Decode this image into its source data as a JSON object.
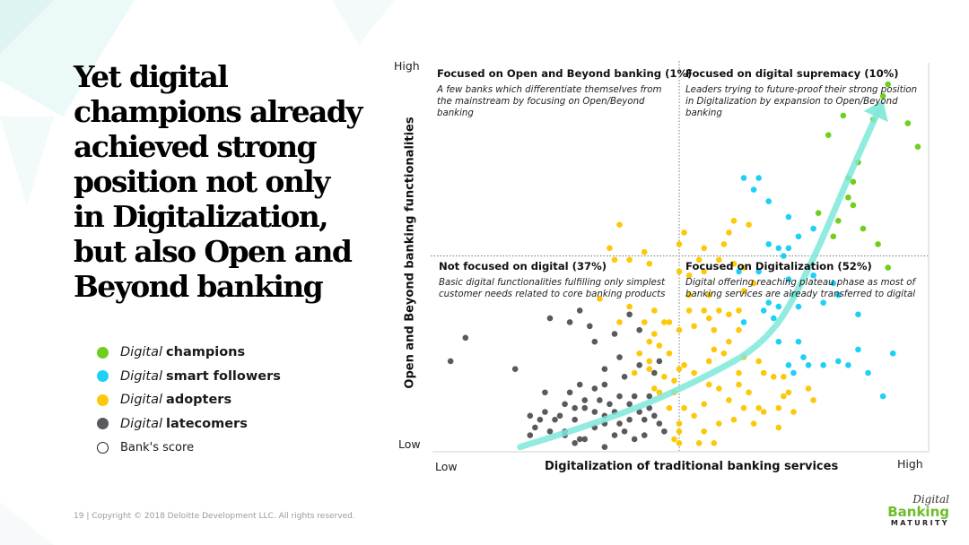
{
  "headline": [
    "Yet digital",
    "champions already",
    "achieved strong",
    "position not only",
    "in Digitalization,",
    "but also Open and",
    "Beyond banking"
  ],
  "legend": [
    {
      "prefix": "Digital",
      "name": "champions",
      "color": "#6fcf1c"
    },
    {
      "prefix": "Digital",
      "name": "smart followers",
      "color": "#1fd0f5"
    },
    {
      "prefix": "Digital",
      "name": "adopters",
      "color": "#fcc80a"
    },
    {
      "prefix": "Digital",
      "name": "latecomers",
      "color": "#5a5a5e"
    },
    {
      "prefix": "",
      "name": "Bank's score",
      "color": "#ffffff"
    }
  ],
  "axes": {
    "y_label": "Open and Beyond banking functionalities",
    "x_label": "Digitalization of traditional banking services",
    "y_high": "High",
    "y_low": "Low",
    "x_low": "Low",
    "x_high": "High"
  },
  "quadrants": {
    "top_left": {
      "title": "Focused on Open and Beyond banking (1%)",
      "desc": "A few banks which differentiate themselves from the mainstream by focusing on Open/Beyond banking"
    },
    "top_right": {
      "title": "Focused on digital supremacy (10%)",
      "desc": "Leaders trying to future-proof their strong position in Digitalization by expansion to Open/Beyond banking"
    },
    "bottom_left": {
      "title": "Not focused on digital (37%)",
      "desc": "Basic digital functionalities fulfilling only simplest customer needs related to core banking products"
    },
    "bottom_right": {
      "title": "Focused on Digitalization (52%)",
      "desc": "Digital offering reaching plateau phase as most of banking services are already transferred to digital"
    }
  },
  "chart_data": {
    "type": "scatter",
    "title": "",
    "xlabel": "Digitalization of traditional banking services",
    "ylabel": "Open and Beyond banking functionalities",
    "xlim": [
      0,
      100
    ],
    "ylim": [
      0,
      100
    ],
    "threshold": {
      "x": 50,
      "y": 50
    },
    "quadrant_shares": {
      "top_left": 1,
      "top_right": 10,
      "bottom_left": 37,
      "bottom_right": 52
    },
    "trend_arrow": [
      [
        18,
        1
      ],
      [
        36,
        8
      ],
      [
        54,
        18
      ],
      [
        68,
        28
      ],
      [
        76,
        46
      ],
      [
        84,
        70
      ],
      [
        90,
        87
      ]
    ],
    "series": [
      {
        "name": "Digital champions",
        "color": "#6fcf1c",
        "points": [
          [
            80,
            81
          ],
          [
            83,
            86
          ],
          [
            91,
            91
          ],
          [
            92,
            94
          ],
          [
            96,
            84
          ],
          [
            98,
            78
          ],
          [
            84,
            65
          ],
          [
            85,
            63
          ],
          [
            87,
            57
          ],
          [
            85,
            69
          ],
          [
            84,
            70
          ],
          [
            82,
            59
          ],
          [
            78,
            61
          ],
          [
            81,
            55
          ],
          [
            90,
            53
          ],
          [
            92,
            47
          ],
          [
            89,
            85
          ],
          [
            86,
            74
          ]
        ]
      },
      {
        "name": "Digital smart followers",
        "color": "#1fd0f5",
        "points": [
          [
            63,
            70
          ],
          [
            66,
            70
          ],
          [
            65,
            67
          ],
          [
            68,
            64
          ],
          [
            72,
            60
          ],
          [
            74,
            55
          ],
          [
            70,
            52
          ],
          [
            72,
            52
          ],
          [
            62,
            46
          ],
          [
            66,
            46
          ],
          [
            72,
            44
          ],
          [
            77,
            45
          ],
          [
            73,
            40
          ],
          [
            70,
            37
          ],
          [
            74,
            37
          ],
          [
            75,
            24
          ],
          [
            76,
            22
          ],
          [
            72,
            22
          ],
          [
            73,
            20
          ],
          [
            79,
            22
          ],
          [
            82,
            23
          ],
          [
            84,
            22
          ],
          [
            86,
            26
          ],
          [
            88,
            20
          ],
          [
            91,
            14
          ],
          [
            93,
            25
          ],
          [
            86,
            35
          ],
          [
            79,
            38
          ],
          [
            81,
            43
          ],
          [
            82,
            40
          ],
          [
            68,
            38
          ],
          [
            69,
            34
          ],
          [
            70,
            28
          ],
          [
            74,
            28
          ],
          [
            67,
            36
          ],
          [
            63,
            33
          ],
          [
            71,
            50
          ],
          [
            68,
            53
          ],
          [
            77,
            57
          ]
        ]
      },
      {
        "name": "Digital adopters",
        "color": "#fcc80a",
        "points": [
          [
            38,
            58
          ],
          [
            37,
            49
          ],
          [
            36,
            52
          ],
          [
            40,
            49
          ],
          [
            43,
            51
          ],
          [
            44,
            48
          ],
          [
            50,
            53
          ],
          [
            51,
            56
          ],
          [
            55,
            52
          ],
          [
            59,
            53
          ],
          [
            60,
            56
          ],
          [
            61,
            59
          ],
          [
            64,
            58
          ],
          [
            58,
            49
          ],
          [
            61,
            48
          ],
          [
            63,
            47
          ],
          [
            52,
            45
          ],
          [
            50,
            46
          ],
          [
            52,
            40
          ],
          [
            55,
            36
          ],
          [
            56,
            34
          ],
          [
            58,
            36
          ],
          [
            60,
            35
          ],
          [
            62,
            36
          ],
          [
            52,
            36
          ],
          [
            53,
            32
          ],
          [
            50,
            31
          ],
          [
            48,
            33
          ],
          [
            47,
            33
          ],
          [
            46,
            27
          ],
          [
            44,
            23
          ],
          [
            44,
            21
          ],
          [
            47,
            19
          ],
          [
            49,
            18
          ],
          [
            50,
            21
          ],
          [
            49,
            15
          ],
          [
            46,
            15
          ],
          [
            45,
            16
          ],
          [
            48,
            11
          ],
          [
            51,
            11
          ],
          [
            53,
            9
          ],
          [
            55,
            12
          ],
          [
            56,
            17
          ],
          [
            58,
            16
          ],
          [
            60,
            13
          ],
          [
            62,
            17
          ],
          [
            63,
            11
          ],
          [
            66,
            11
          ],
          [
            70,
            11
          ],
          [
            73,
            10
          ],
          [
            77,
            13
          ],
          [
            71,
            14
          ],
          [
            76,
            16
          ],
          [
            55,
            5
          ],
          [
            58,
            7
          ],
          [
            61,
            8
          ],
          [
            50,
            7
          ],
          [
            50,
            5
          ],
          [
            49,
            3
          ],
          [
            50,
            2
          ],
          [
            54,
            2
          ],
          [
            57,
            2
          ],
          [
            65,
            7
          ],
          [
            67,
            10
          ],
          [
            70,
            6
          ],
          [
            64,
            15
          ],
          [
            62,
            20
          ],
          [
            56,
            23
          ],
          [
            57,
            26
          ],
          [
            59,
            25
          ],
          [
            60,
            28
          ],
          [
            62,
            31
          ],
          [
            57,
            31
          ],
          [
            63,
            24
          ],
          [
            66,
            23
          ],
          [
            67,
            20
          ],
          [
            69,
            19
          ],
          [
            71,
            19
          ],
          [
            72,
            15
          ],
          [
            45,
            36
          ],
          [
            43,
            33
          ],
          [
            40,
            37
          ],
          [
            38,
            33
          ],
          [
            34,
            39
          ],
          [
            51,
            22
          ],
          [
            53,
            20
          ],
          [
            48,
            25
          ],
          [
            45,
            30
          ],
          [
            44,
            28
          ],
          [
            63,
            41
          ],
          [
            65,
            43
          ],
          [
            56,
            40
          ],
          [
            55,
            46
          ],
          [
            54,
            49
          ],
          [
            42,
            25
          ],
          [
            41,
            20
          ]
        ]
      },
      {
        "name": "Digital latecomers",
        "color": "#5a5a5e",
        "points": [
          [
            4,
            23
          ],
          [
            7,
            29
          ],
          [
            17,
            21
          ],
          [
            24,
            34
          ],
          [
            30,
            36
          ],
          [
            28,
            33
          ],
          [
            32,
            32
          ],
          [
            33,
            28
          ],
          [
            37,
            30
          ],
          [
            40,
            35
          ],
          [
            42,
            31
          ],
          [
            35,
            21
          ],
          [
            39,
            19
          ],
          [
            44,
            14
          ],
          [
            38,
            14
          ],
          [
            33,
            16
          ],
          [
            30,
            17
          ],
          [
            28,
            15
          ],
          [
            27,
            12
          ],
          [
            26,
            9
          ],
          [
            23,
            10
          ],
          [
            22,
            8
          ],
          [
            24,
            5
          ],
          [
            27,
            5
          ],
          [
            29,
            8
          ],
          [
            31,
            11
          ],
          [
            33,
            10
          ],
          [
            35,
            9
          ],
          [
            37,
            10
          ],
          [
            38,
            7
          ],
          [
            40,
            8
          ],
          [
            42,
            10
          ],
          [
            43,
            8
          ],
          [
            44,
            11
          ],
          [
            45,
            9
          ],
          [
            46,
            7
          ],
          [
            47,
            5
          ],
          [
            43,
            4
          ],
          [
            41,
            3
          ],
          [
            39,
            5
          ],
          [
            37,
            4
          ],
          [
            35,
            7
          ],
          [
            33,
            6
          ],
          [
            31,
            3
          ],
          [
            29,
            2
          ],
          [
            27,
            4
          ],
          [
            25,
            8
          ],
          [
            21,
            6
          ],
          [
            20,
            4
          ],
          [
            23,
            15
          ],
          [
            20,
            9
          ],
          [
            35,
            1
          ],
          [
            30,
            3
          ],
          [
            40,
            12
          ],
          [
            45,
            20
          ],
          [
            46,
            23
          ],
          [
            42,
            22
          ],
          [
            38,
            24
          ],
          [
            35,
            17
          ],
          [
            34,
            13
          ],
          [
            36,
            12
          ],
          [
            41,
            14
          ],
          [
            31,
            13
          ],
          [
            29,
            11
          ]
        ]
      }
    ]
  },
  "footer": "19  |  Copyright © 2018 Deloitte Development LLC. All rights reserved.",
  "brand": {
    "line1": "Digital",
    "line2": "Banking",
    "line3": "MATURITY"
  }
}
